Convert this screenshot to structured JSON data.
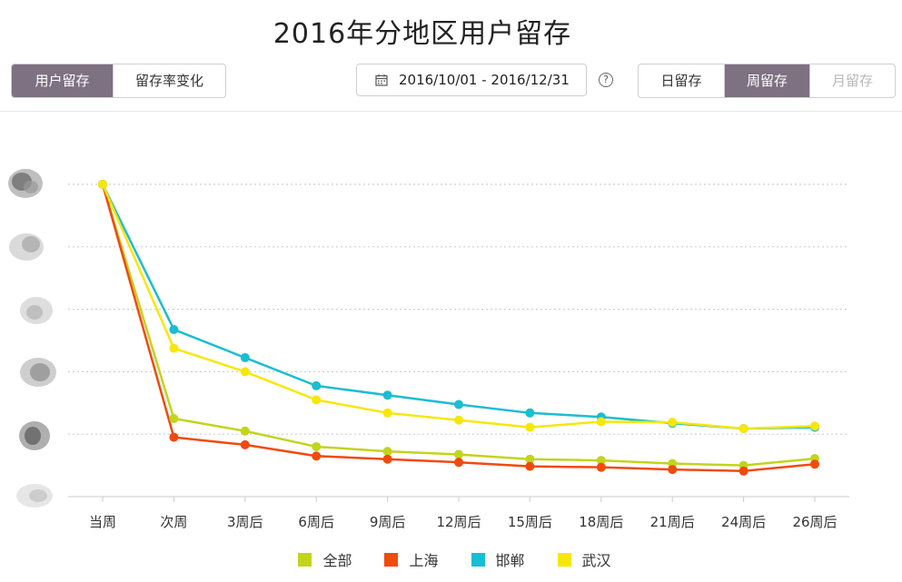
{
  "header": {
    "title": "2016年分地区用户留存"
  },
  "view_toggle": {
    "options": [
      {
        "label": "用户留存",
        "active": true
      },
      {
        "label": "留存率变化",
        "active": false
      }
    ]
  },
  "date_range": {
    "value": "2016/10/01 - 2016/12/31",
    "icon": "calendar-icon"
  },
  "help": {
    "icon": "question-circle-icon",
    "glyph": "?"
  },
  "period_toggle": {
    "options": [
      {
        "label": "日留存",
        "state": "normal"
      },
      {
        "label": "周留存",
        "state": "active"
      },
      {
        "label": "月留存",
        "state": "disabled"
      }
    ]
  },
  "colors": {
    "全部": "#c2d41d",
    "上海": "#f14a0e",
    "邯郸": "#1bbdd2",
    "武汉": "#f6e70b",
    "grid": "#cfcfcf",
    "axis": "#cccccc"
  },
  "chart_data": {
    "type": "line",
    "title": "2016年分地区用户留存",
    "xlabel": "",
    "ylabel": "",
    "categories": [
      "当周",
      "次周",
      "3周后",
      "6周后",
      "9周后",
      "12周后",
      "15周后",
      "18周后",
      "21周后",
      "24周后",
      "26周后"
    ],
    "ylim": [
      0,
      100
    ],
    "grid": true,
    "y_tick_labels_obscured": true,
    "series": [
      {
        "name": "全部",
        "values": [
          100,
          25,
          21,
          16,
          14.5,
          13.5,
          12,
          11.6,
          10.6,
          10,
          12.2
        ]
      },
      {
        "name": "上海",
        "values": [
          100,
          19,
          16.6,
          13,
          12,
          11,
          9.7,
          9.4,
          8.7,
          8.2,
          10.4
        ]
      },
      {
        "name": "邯郸",
        "values": [
          100,
          53.5,
          44.5,
          35.5,
          32.5,
          29.5,
          26.8,
          25.5,
          23.5,
          21.8,
          22.2
        ]
      },
      {
        "name": "武汉",
        "values": [
          100,
          47.5,
          40,
          31,
          26.8,
          24.5,
          22.2,
          24,
          23.8,
          21.8,
          22.6
        ]
      }
    ],
    "legend": [
      "全部",
      "上海",
      "邯郸",
      "武汉"
    ],
    "legend_position": "bottom"
  }
}
